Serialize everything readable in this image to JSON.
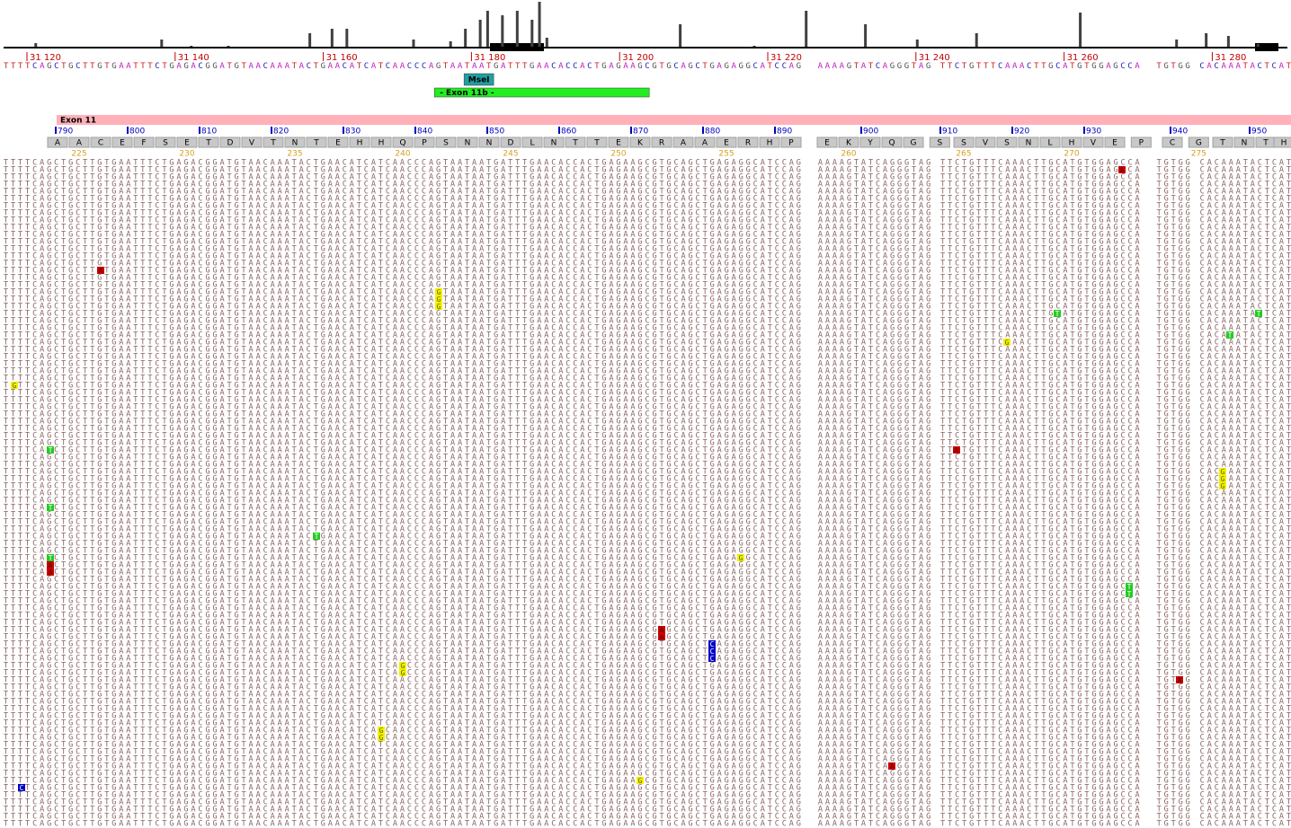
{
  "ruler": {
    "ticks": [
      {
        "value": 31120,
        "label": "31 120"
      },
      {
        "value": 31140,
        "label": "31 140"
      },
      {
        "value": 31160,
        "label": "31 160"
      },
      {
        "value": 31180,
        "label": "31 180"
      },
      {
        "value": 31200,
        "label": "31 200"
      },
      {
        "value": 31220,
        "label": "31 220"
      },
      {
        "value": 31240,
        "label": "31 240"
      },
      {
        "value": 31260,
        "label": "31 260"
      },
      {
        "value": 31280,
        "label": "31 280"
      }
    ]
  },
  "coverage": [
    {
      "pos": 31121,
      "depth": 4
    },
    {
      "pos": 31138,
      "depth": 8
    },
    {
      "pos": 31142,
      "depth": 1
    },
    {
      "pos": 31147,
      "depth": 1
    },
    {
      "pos": 31158,
      "depth": 15
    },
    {
      "pos": 31161,
      "depth": 20
    },
    {
      "pos": 31163,
      "depth": 20
    },
    {
      "pos": 31172,
      "depth": 8
    },
    {
      "pos": 31177,
      "depth": 6
    },
    {
      "pos": 31179,
      "depth": 20
    },
    {
      "pos": 31181,
      "depth": 30
    },
    {
      "pos": 31182,
      "depth": 40
    },
    {
      "pos": 31184,
      "depth": 35
    },
    {
      "pos": 31186,
      "depth": 40
    },
    {
      "pos": 31188,
      "depth": 30
    },
    {
      "pos": 31189,
      "depth": 50
    },
    {
      "pos": 31190,
      "depth": 10
    },
    {
      "pos": 31208,
      "depth": 25
    },
    {
      "pos": 31218,
      "depth": 1
    },
    {
      "pos": 31225,
      "depth": 40
    },
    {
      "pos": 31233,
      "depth": 25
    },
    {
      "pos": 31240,
      "depth": 8
    },
    {
      "pos": 31248,
      "depth": 15
    },
    {
      "pos": 31262,
      "depth": 38
    },
    {
      "pos": 31275,
      "depth": 8
    },
    {
      "pos": 31279,
      "depth": 15
    },
    {
      "pos": 31282,
      "depth": 12
    },
    {
      "pos": 31286,
      "depth": 3
    }
  ],
  "reference": {
    "sequence": "TTTTCAGCTGCTTGTGAATTTCTGAGACGGATGTAACAAATACTGAACATCATCAACCCAGTAATAATGATTTGAACACCACTGAGAAGCGTGCAGCTGAGAGGCATCCAG  AAAAGTATCAGGGTAG TTCTGTTTCAAACTTGCATGTGGAGCCA  TGTGG CACAAATACTCAT"
  },
  "base_colors": {
    "A": "#c020c0",
    "C": "#2020c0",
    "G": "#505050",
    "T": "#d02020"
  },
  "mismatch_colors": {
    "A": "#c80000",
    "C": "#0000c8",
    "G": "#f0f000",
    "T": "#20cc20"
  },
  "features": [
    {
      "label": "MseI",
      "start": 31179,
      "end": 31183,
      "color": "#20a0a0"
    },
    {
      "label": "- Exon 11b -",
      "start": 31175,
      "end": 31204,
      "color": "#22ee22"
    }
  ],
  "exon": {
    "label": "Exon 11",
    "start": 31124,
    "color": "#ffb0b8"
  },
  "cdna_ticks": [
    790,
    800,
    810,
    820,
    830,
    840,
    850,
    860,
    870,
    880,
    890,
    900,
    910,
    920,
    930,
    940,
    950
  ],
  "protein": {
    "residues": [
      "A",
      "A",
      "C",
      "E",
      "F",
      "S",
      "E",
      "T",
      "D",
      "V",
      "T",
      "N",
      "T",
      "E",
      "H",
      "H",
      "Q",
      "P",
      "S",
      "N",
      "N",
      "D",
      "L",
      "N",
      "T",
      "T",
      "E",
      "K",
      "R",
      "A",
      "A",
      "E",
      "R",
      "H",
      "P",
      "E",
      "K",
      "Y",
      "Q",
      "G",
      "S",
      "S",
      "V",
      "S",
      "N",
      "L",
      "H",
      "V",
      "E",
      "P",
      "C",
      "G",
      "T",
      "N",
      "T",
      "H"
    ],
    "numbers": [
      225,
      230,
      235,
      240,
      245,
      250,
      255,
      260,
      265,
      270,
      275
    ]
  },
  "reads": {
    "count": 93
  },
  "variants": [
    {
      "row": 1,
      "col": 155,
      "base": "A"
    },
    {
      "row": 15,
      "col": 13,
      "base": "A"
    },
    {
      "row": 18,
      "col": 60,
      "base": "G"
    },
    {
      "row": 19,
      "col": 60,
      "base": "G"
    },
    {
      "row": 20,
      "col": 60,
      "base": "G"
    },
    {
      "row": 21,
      "col": 146,
      "base": "T"
    },
    {
      "row": 21,
      "col": 174,
      "base": "T"
    },
    {
      "row": 24,
      "col": 170,
      "base": "T"
    },
    {
      "row": 25,
      "col": 139,
      "base": "G"
    },
    {
      "row": 31,
      "col": 1,
      "base": "G"
    },
    {
      "row": 40,
      "col": 6,
      "base": "T"
    },
    {
      "row": 40,
      "col": 132,
      "base": "A"
    },
    {
      "row": 43,
      "col": 169,
      "base": "G"
    },
    {
      "row": 44,
      "col": 169,
      "base": "G"
    },
    {
      "row": 45,
      "col": 169,
      "base": "G"
    },
    {
      "row": 48,
      "col": 6,
      "base": "T"
    },
    {
      "row": 52,
      "col": 43,
      "base": "T"
    },
    {
      "row": 55,
      "col": 6,
      "base": "T"
    },
    {
      "row": 56,
      "col": 6,
      "base": "A"
    },
    {
      "row": 57,
      "col": 6,
      "base": "A"
    },
    {
      "row": 55,
      "col": 102,
      "base": "G"
    },
    {
      "row": 59,
      "col": 156,
      "base": "T"
    },
    {
      "row": 60,
      "col": 156,
      "base": "T"
    },
    {
      "row": 65,
      "col": 91,
      "base": "A"
    },
    {
      "row": 66,
      "col": 91,
      "base": "A"
    },
    {
      "row": 67,
      "col": 98,
      "base": "C"
    },
    {
      "row": 68,
      "col": 98,
      "base": "C"
    },
    {
      "row": 69,
      "col": 98,
      "base": "C"
    },
    {
      "row": 70,
      "col": 55,
      "base": "G"
    },
    {
      "row": 71,
      "col": 55,
      "base": "G"
    },
    {
      "row": 72,
      "col": 163,
      "base": "A"
    },
    {
      "row": 79,
      "col": 52,
      "base": "G"
    },
    {
      "row": 80,
      "col": 52,
      "base": "G"
    },
    {
      "row": 84,
      "col": 123,
      "base": "A"
    },
    {
      "row": 86,
      "col": 88,
      "base": "G"
    },
    {
      "row": 87,
      "col": 2,
      "base": "C"
    }
  ]
}
